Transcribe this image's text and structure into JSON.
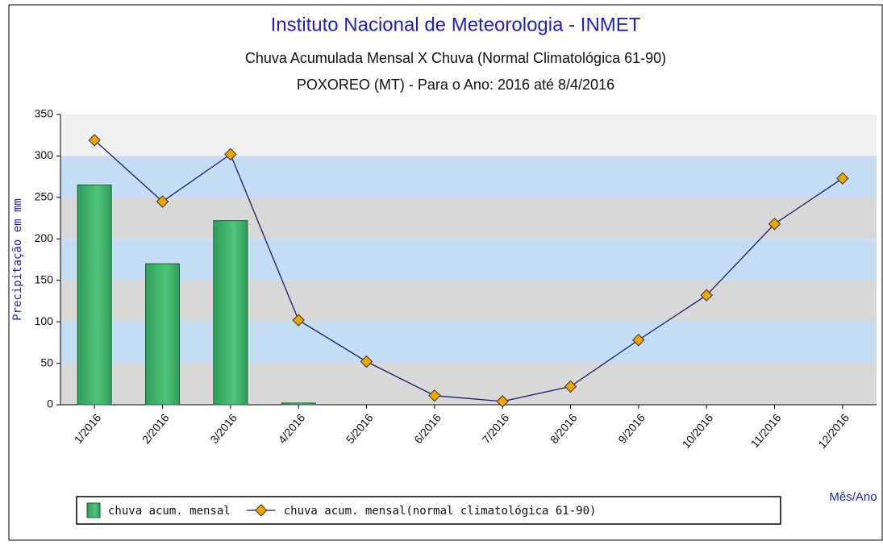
{
  "chart_data": {
    "type": "bar",
    "title": "Instituto Nacional de Meteorologia - INMET",
    "subtitles": [
      "Chuva Acumulada Mensal X Chuva (Normal Climatológica 61-90)",
      "POXOREO (MT) - Para o Ano: 2016 até 8/4/2016"
    ],
    "x_label": "Mês/Ano",
    "y_label": "Precipitação em mm",
    "categories": [
      "1/2016",
      "2/2016",
      "3/2016",
      "4/2016",
      "5/2016",
      "6/2016",
      "7/2016",
      "8/2016",
      "9/2016",
      "10/2016",
      "11/2016",
      "12/2016"
    ],
    "series": [
      {
        "name": "chuva acum. mensal",
        "type": "bar",
        "color": "#2e9e5a",
        "values": [
          265,
          170,
          222,
          2,
          null,
          null,
          null,
          null,
          null,
          null,
          null,
          null
        ]
      },
      {
        "name": "chuva acum. mensal(normal climatológica 61-90)",
        "type": "line",
        "color": "#1c1c6a",
        "marker_color": "#f0a500",
        "values": [
          319,
          245,
          302,
          102,
          52,
          11,
          4,
          22,
          78,
          132,
          218,
          273
        ]
      }
    ],
    "ylim": [
      0,
      350
    ],
    "yticks": [
      0,
      50,
      100,
      150,
      200,
      250,
      300,
      350
    ],
    "grid": true,
    "band_colors": [
      "#d8d8d8",
      "#c4ddf4",
      "#f0f0f0"
    ]
  }
}
